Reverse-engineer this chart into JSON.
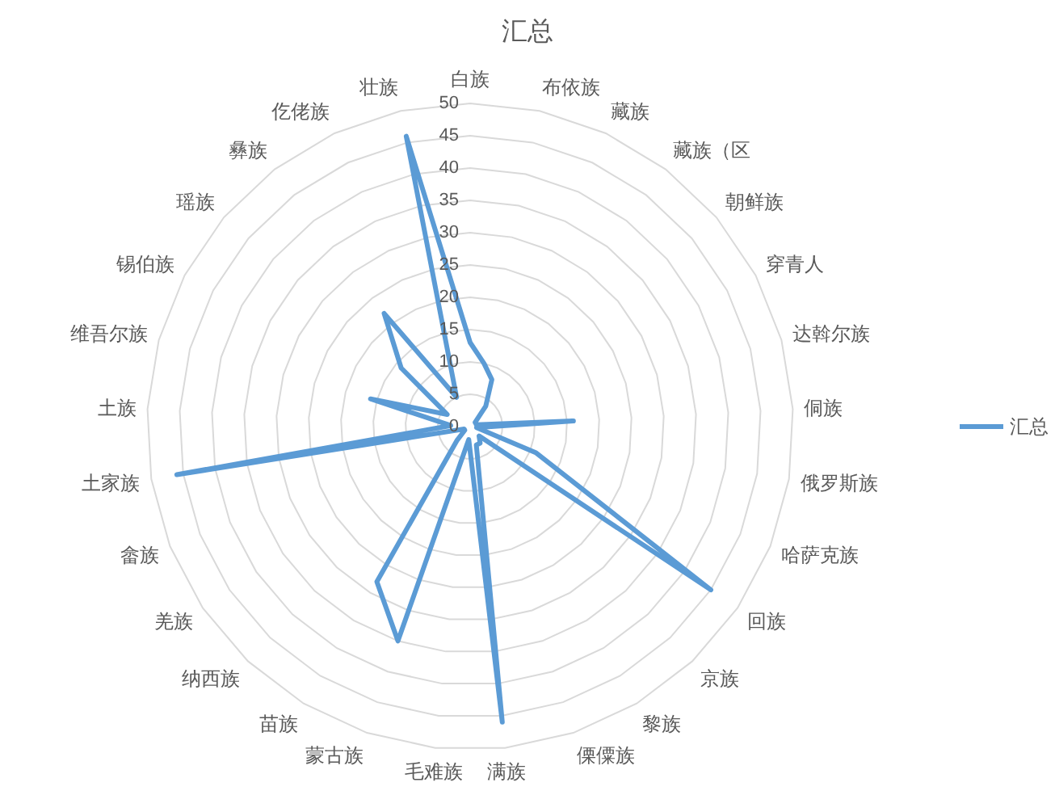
{
  "chart_data": {
    "type": "radar",
    "title": "汇总",
    "categories": [
      "白族",
      "布依族",
      "藏族",
      "藏族（区",
      "朝鲜族",
      "穿青人",
      "达斡尔族",
      "侗族",
      "俄罗斯族",
      "哈萨克族",
      "回族",
      "京族",
      "黎族",
      "傈僳族",
      "满族",
      "毛难族",
      "蒙古族",
      "苗族",
      "纳西族",
      "羌族",
      "畲族",
      "土家族",
      "土族",
      "维吾尔族",
      "锡伯族",
      "瑶族",
      "彝族",
      "仡佬族",
      "壮族"
    ],
    "series": [
      {
        "name": "汇总",
        "color": "#5b9bd5",
        "values": [
          13,
          10,
          8,
          4,
          1,
          1,
          1,
          16,
          1,
          11,
          45,
          2,
          3,
          3,
          46,
          2,
          35,
          28,
          3,
          1,
          1,
          46,
          3,
          16,
          4,
          14,
          22,
          5,
          46
        ]
      }
    ],
    "ylim": [
      0,
      50
    ],
    "yticks": [
      0,
      5,
      10,
      15,
      20,
      25,
      30,
      35,
      40,
      45,
      50
    ],
    "grid": true,
    "legend": "right"
  }
}
